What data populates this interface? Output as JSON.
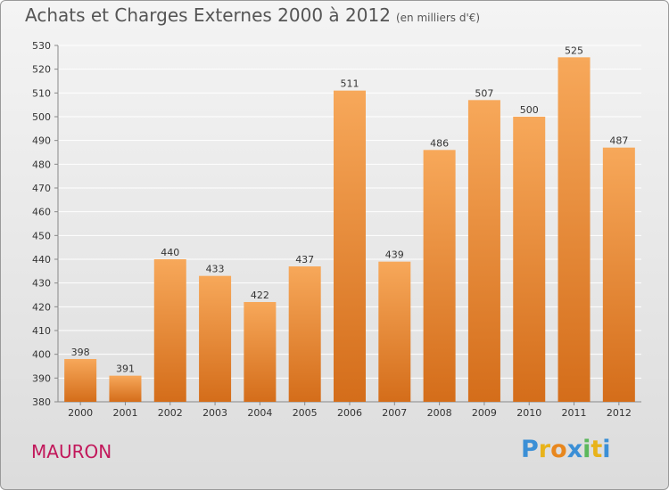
{
  "title": "Achats et Charges Externes 2000 à 2012",
  "unit_note": "(en milliers d'€)",
  "commune": "MAURON",
  "logo": {
    "text": "Proxiti",
    "letters": [
      "P",
      "r",
      "o",
      "x",
      "i",
      "t",
      "i"
    ],
    "colors": [
      "#3b8fd6",
      "#e8b31a",
      "#e8871e",
      "#3b8fd6",
      "#5cb85c",
      "#e8b31a",
      "#3b8fd6"
    ]
  },
  "colors": {
    "bar_top": "#f7a85a",
    "bar_bottom": "#d46d1a",
    "grid": "#ffffff",
    "axis_text": "#333333",
    "commune": "#c2185b"
  },
  "chart_data": {
    "type": "bar",
    "title": "Achats et Charges Externes 2000 à 2012",
    "subtitle": "(en milliers d'€)",
    "categories": [
      "2000",
      "2001",
      "2002",
      "2003",
      "2004",
      "2005",
      "2006",
      "2007",
      "2008",
      "2009",
      "2010",
      "2011",
      "2012"
    ],
    "values": [
      398,
      391,
      440,
      433,
      422,
      437,
      511,
      439,
      486,
      507,
      500,
      525,
      487
    ],
    "ylim": [
      380,
      530
    ],
    "yticks": [
      380,
      390,
      400,
      410,
      420,
      430,
      440,
      450,
      460,
      470,
      480,
      490,
      500,
      510,
      520,
      530
    ],
    "grid": true,
    "value_labels": true
  }
}
